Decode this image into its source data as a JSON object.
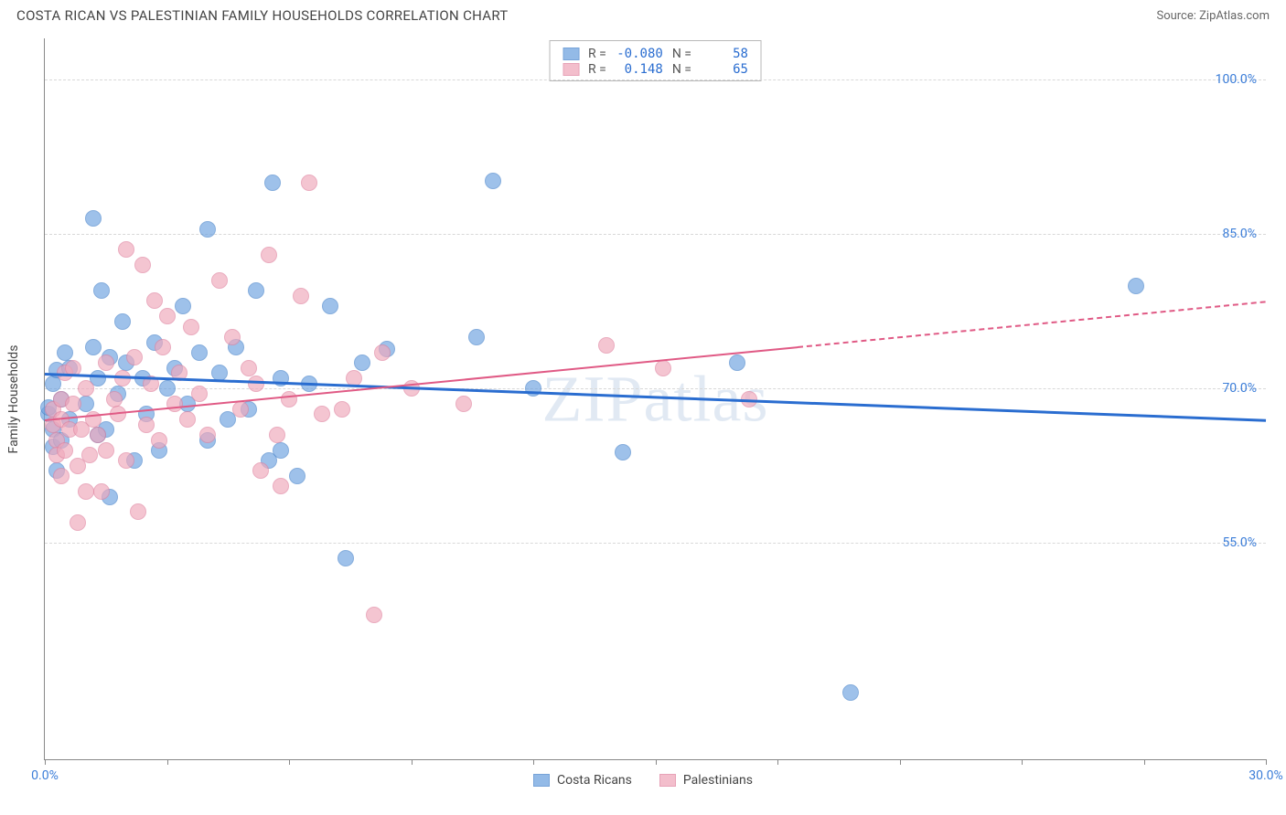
{
  "header": {
    "title": "COSTA RICAN VS PALESTINIAN FAMILY HOUSEHOLDS CORRELATION CHART",
    "source_prefix": "Source: ",
    "source_name": "ZipAtlas.com"
  },
  "chart": {
    "type": "scatter",
    "ylabel": "Family Households",
    "watermark": "ZIPatlas",
    "background_color": "#ffffff",
    "grid_color": "#d8d8d8",
    "axis_color": "#888888",
    "xlim": [
      0,
      30
    ],
    "ylim": [
      34,
      104
    ],
    "xticks": [
      0,
      3,
      6,
      9,
      12,
      15,
      18,
      21,
      24,
      27,
      30
    ],
    "xtick_labels": {
      "0": "0.0%",
      "30": "30.0%"
    },
    "yticks": [
      55,
      70,
      85,
      100
    ],
    "ytick_labels": {
      "55": "55.0%",
      "70": "70.0%",
      "85": "85.0%",
      "100": "100.0%"
    },
    "marker_radius": 9,
    "marker_fill_opacity": 0.32,
    "series": [
      {
        "name": "Costa Ricans",
        "color": "#6fa3e0",
        "stroke": "#4a85cc",
        "trend": {
          "x1": 0,
          "y1": 71.5,
          "x2": 30,
          "y2": 67.0,
          "solid_until_x": 30,
          "color": "#2a6dd0",
          "width": 2.5
        },
        "stats": {
          "R": "-0.080",
          "N": "58"
        },
        "points": [
          [
            0.1,
            67.5
          ],
          [
            0.1,
            68.2
          ],
          [
            0.2,
            64.3
          ],
          [
            0.2,
            66.0
          ],
          [
            0.3,
            62.0
          ],
          [
            0.2,
            70.5
          ],
          [
            0.3,
            71.8
          ],
          [
            0.4,
            69.0
          ],
          [
            0.4,
            65.0
          ],
          [
            0.5,
            73.5
          ],
          [
            0.6,
            72.0
          ],
          [
            0.6,
            67.0
          ],
          [
            1.0,
            68.5
          ],
          [
            1.2,
            86.5
          ],
          [
            1.2,
            74.0
          ],
          [
            1.3,
            65.5
          ],
          [
            1.3,
            71.0
          ],
          [
            1.4,
            79.5
          ],
          [
            1.5,
            66.0
          ],
          [
            1.6,
            73.0
          ],
          [
            1.6,
            59.5
          ],
          [
            1.8,
            69.5
          ],
          [
            1.9,
            76.5
          ],
          [
            2.0,
            72.5
          ],
          [
            2.2,
            63.0
          ],
          [
            2.4,
            71.0
          ],
          [
            2.5,
            67.5
          ],
          [
            2.7,
            74.5
          ],
          [
            2.8,
            64.0
          ],
          [
            3.0,
            70.0
          ],
          [
            3.2,
            72.0
          ],
          [
            3.4,
            78.0
          ],
          [
            3.5,
            68.5
          ],
          [
            3.8,
            73.5
          ],
          [
            4.0,
            65.0
          ],
          [
            4.0,
            85.5
          ],
          [
            4.3,
            71.5
          ],
          [
            4.5,
            67.0
          ],
          [
            4.7,
            74.0
          ],
          [
            5.0,
            68.0
          ],
          [
            5.2,
            79.5
          ],
          [
            5.5,
            63.0
          ],
          [
            5.6,
            90.0
          ],
          [
            5.8,
            71.0
          ],
          [
            5.8,
            64.0
          ],
          [
            6.2,
            61.5
          ],
          [
            6.5,
            70.5
          ],
          [
            7.0,
            78.0
          ],
          [
            7.4,
            53.5
          ],
          [
            7.8,
            72.5
          ],
          [
            8.4,
            73.8
          ],
          [
            10.6,
            75.0
          ],
          [
            11.0,
            90.2
          ],
          [
            12.0,
            70.0
          ],
          [
            14.2,
            63.8
          ],
          [
            17.0,
            72.5
          ],
          [
            19.8,
            40.5
          ],
          [
            26.8,
            80.0
          ]
        ]
      },
      {
        "name": "Palestinians",
        "color": "#f0a9bc",
        "stroke": "#e084a0",
        "trend": {
          "x1": 0,
          "y1": 67.0,
          "x2": 30,
          "y2": 78.5,
          "solid_until_x": 18.5,
          "color": "#e05a85",
          "width": 2
        },
        "stats": {
          "R": "0.148",
          "N": "65"
        },
        "points": [
          [
            0.2,
            66.5
          ],
          [
            0.2,
            68.0
          ],
          [
            0.3,
            65.0
          ],
          [
            0.3,
            63.5
          ],
          [
            0.4,
            69.0
          ],
          [
            0.4,
            67.0
          ],
          [
            0.4,
            61.5
          ],
          [
            0.5,
            71.5
          ],
          [
            0.5,
            64.0
          ],
          [
            0.6,
            66.0
          ],
          [
            0.7,
            72.0
          ],
          [
            0.7,
            68.5
          ],
          [
            0.8,
            57.0
          ],
          [
            0.8,
            62.5
          ],
          [
            0.9,
            66.0
          ],
          [
            1.0,
            60.0
          ],
          [
            1.0,
            70.0
          ],
          [
            1.1,
            63.5
          ],
          [
            1.2,
            67.0
          ],
          [
            1.3,
            65.5
          ],
          [
            1.4,
            60.0
          ],
          [
            1.5,
            72.5
          ],
          [
            1.5,
            64.0
          ],
          [
            1.7,
            69.0
          ],
          [
            1.8,
            67.5
          ],
          [
            1.9,
            71.0
          ],
          [
            2.0,
            83.5
          ],
          [
            2.0,
            63.0
          ],
          [
            2.2,
            73.0
          ],
          [
            2.3,
            58.0
          ],
          [
            2.4,
            82.0
          ],
          [
            2.5,
            66.5
          ],
          [
            2.6,
            70.5
          ],
          [
            2.7,
            78.5
          ],
          [
            2.8,
            65.0
          ],
          [
            2.9,
            74.0
          ],
          [
            3.0,
            77.0
          ],
          [
            3.2,
            68.5
          ],
          [
            3.3,
            71.5
          ],
          [
            3.5,
            67.0
          ],
          [
            3.6,
            76.0
          ],
          [
            3.8,
            69.5
          ],
          [
            4.0,
            65.5
          ],
          [
            4.3,
            80.5
          ],
          [
            4.6,
            75.0
          ],
          [
            4.8,
            68.0
          ],
          [
            5.0,
            72.0
          ],
          [
            5.2,
            70.5
          ],
          [
            5.3,
            62.0
          ],
          [
            5.5,
            83.0
          ],
          [
            5.7,
            65.5
          ],
          [
            5.8,
            60.5
          ],
          [
            6.0,
            69.0
          ],
          [
            6.3,
            79.0
          ],
          [
            6.5,
            90.0
          ],
          [
            6.8,
            67.5
          ],
          [
            7.3,
            68.0
          ],
          [
            7.6,
            71.0
          ],
          [
            8.1,
            48.0
          ],
          [
            8.3,
            73.5
          ],
          [
            9.0,
            70.0
          ],
          [
            10.3,
            68.5
          ],
          [
            13.8,
            74.2
          ],
          [
            15.2,
            72.0
          ],
          [
            17.3,
            69.0
          ]
        ]
      }
    ]
  },
  "legend": {
    "item1": "Costa Ricans",
    "item2": "Palestinians"
  },
  "stats_labels": {
    "R": "R =",
    "N": "N ="
  }
}
